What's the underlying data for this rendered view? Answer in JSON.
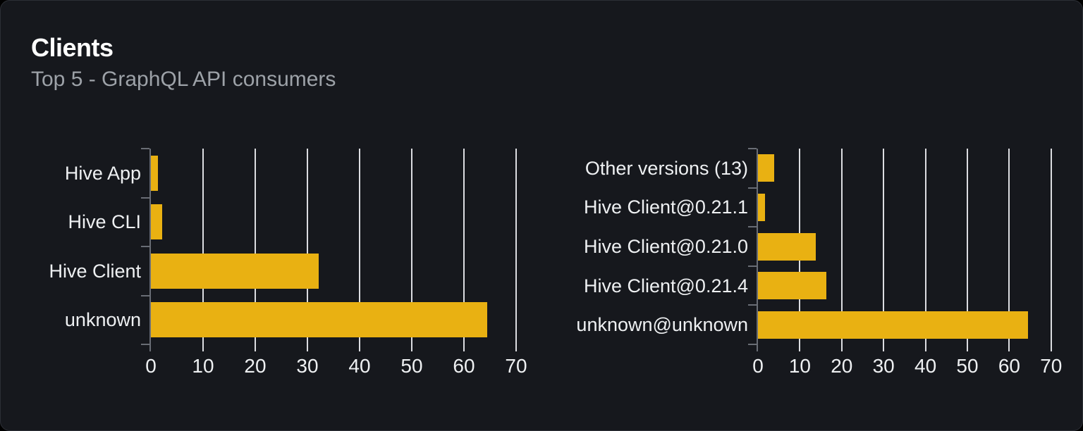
{
  "card": {
    "title": "Clients",
    "subtitle": "Top 5 - GraphQL API consumers"
  },
  "colors": {
    "card_background": "#16181d",
    "card_border": "#2c2f36",
    "bar": "#e9b112",
    "gridline": "#dcdde1",
    "axis": "#696d75",
    "label_text": "#eef0f2",
    "title_text": "#ffffff",
    "subtitle_text": "#9da2a8"
  },
  "chart_data": [
    {
      "type": "bar",
      "orientation": "horizontal",
      "title": "",
      "categories": [
        "Hive App",
        "Hive CLI",
        "Hive Client",
        "unknown"
      ],
      "values": [
        1.3,
        2.1,
        32.2,
        64.5
      ],
      "xlabel": "",
      "ylabel": "",
      "xlim": [
        0,
        70
      ],
      "x_ticks": [
        0,
        10,
        20,
        30,
        40,
        50,
        60,
        70
      ],
      "grid": true,
      "legend": false,
      "bar_color": "#e9b112"
    },
    {
      "type": "bar",
      "orientation": "horizontal",
      "title": "",
      "categories": [
        "Other versions (13)",
        "Hive Client@0.21.1",
        "Hive Client@0.21.0",
        "Hive Client@0.21.4",
        "unknown@unknown"
      ],
      "values": [
        3.9,
        1.7,
        13.8,
        16.3,
        64.5
      ],
      "xlabel": "",
      "ylabel": "",
      "xlim": [
        0,
        70
      ],
      "x_ticks": [
        0,
        10,
        20,
        30,
        40,
        50,
        60,
        70
      ],
      "grid": true,
      "legend": false,
      "bar_color": "#e9b112"
    }
  ]
}
